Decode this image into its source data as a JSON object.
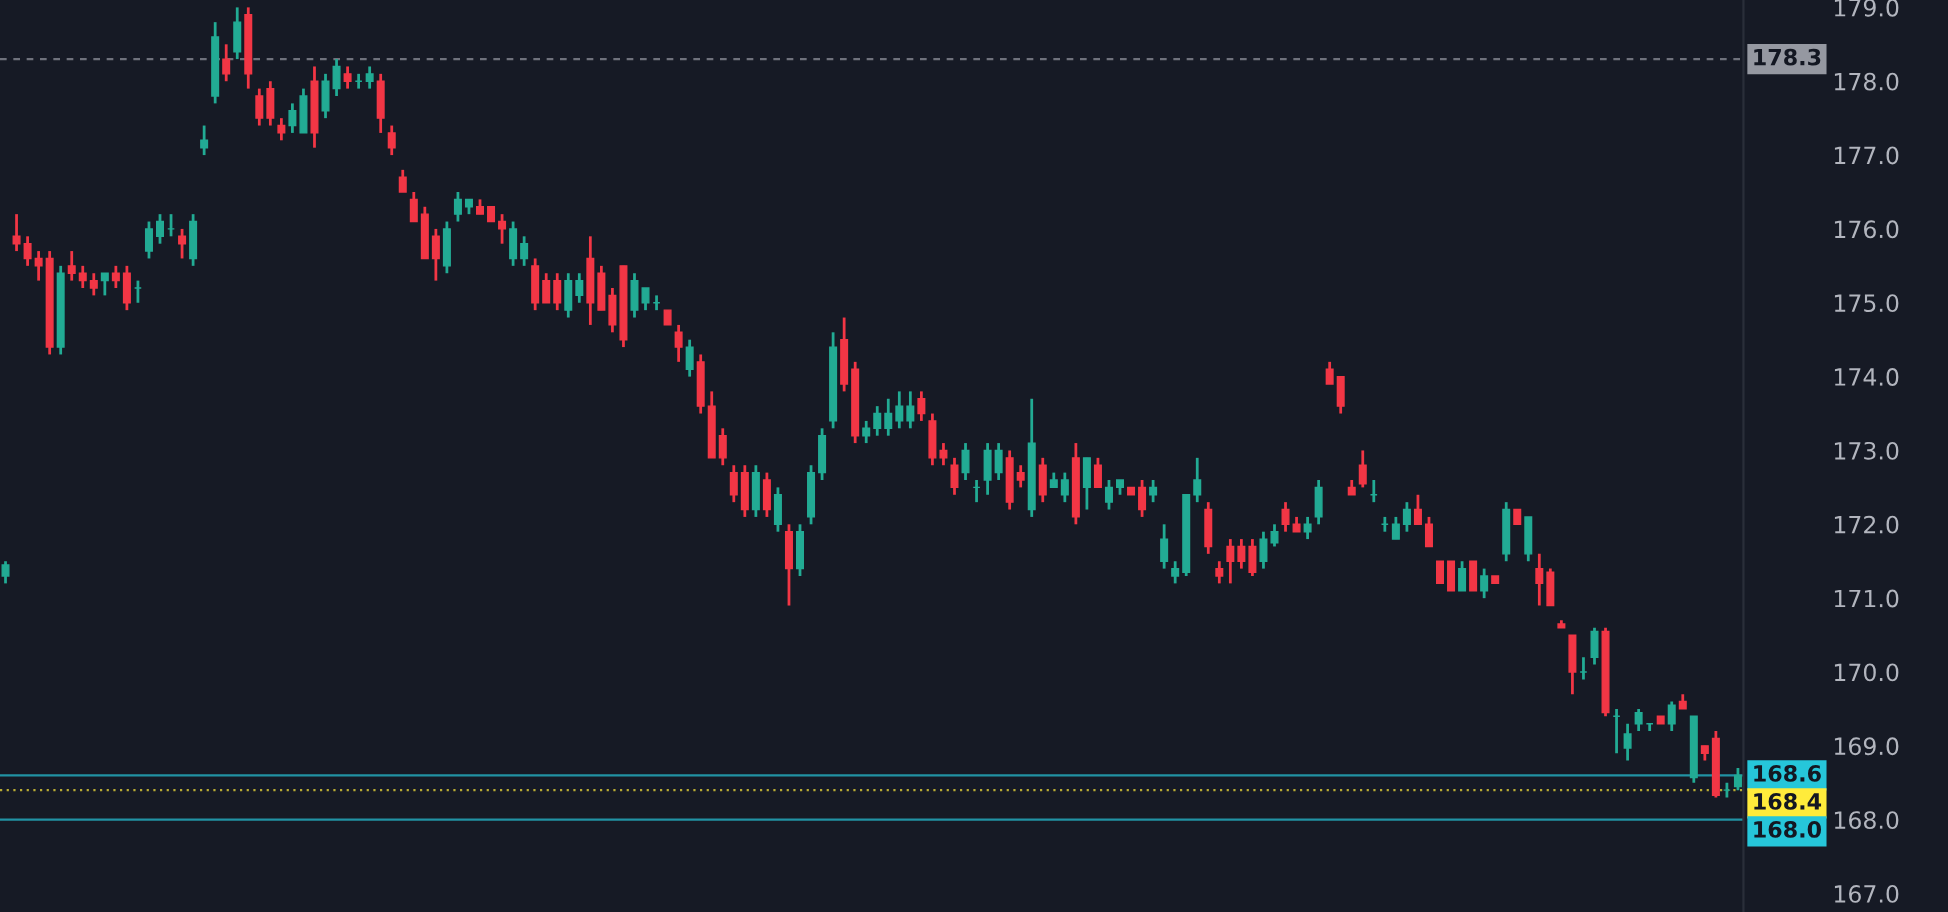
{
  "chart_data": {
    "type": "candlestick",
    "ylim": [
      166.75,
      179.1
    ],
    "yticks": [
      {
        "value": 167,
        "label": "167.0"
      },
      {
        "value": 168,
        "label": "168.0"
      },
      {
        "value": 169,
        "label": "169.0"
      },
      {
        "value": 170,
        "label": "170.0"
      },
      {
        "value": 171,
        "label": "171.0"
      },
      {
        "value": 172,
        "label": "172.0"
      },
      {
        "value": 173,
        "label": "173.0"
      },
      {
        "value": 174,
        "label": "174.0"
      },
      {
        "value": 175,
        "label": "175.0"
      },
      {
        "value": 176,
        "label": "176.0"
      },
      {
        "value": 177,
        "label": "177.0"
      },
      {
        "value": 178,
        "label": "178.0"
      },
      {
        "value": 179,
        "label": "179.0"
      }
    ],
    "tick_labels": "y",
    "categories": [
      null,
      null,
      null,
      null,
      null,
      null,
      null,
      null,
      null,
      null,
      null,
      null,
      null,
      null,
      null,
      null,
      null,
      null,
      null,
      null,
      null,
      null,
      null,
      null,
      null,
      null,
      null,
      null,
      null,
      null,
      null,
      null,
      null,
      null,
      null,
      null,
      null,
      null,
      null,
      null,
      null,
      null,
      null,
      null,
      null,
      null,
      null,
      null,
      null,
      null,
      null,
      null,
      null,
      null,
      null,
      null,
      null,
      null,
      null,
      null,
      null,
      null,
      null,
      null,
      null,
      null,
      null,
      null,
      null,
      null,
      null,
      null,
      null,
      null,
      null,
      null,
      null,
      null,
      null,
      null,
      null,
      null,
      null,
      null,
      null,
      null,
      null,
      null,
      null,
      null,
      null,
      null,
      null,
      null,
      null,
      null,
      null,
      null,
      null,
      null,
      null,
      null,
      null,
      null,
      null,
      null,
      null,
      null,
      null,
      null,
      null,
      null,
      null,
      null,
      null,
      null,
      null,
      null,
      null,
      null,
      null,
      null,
      null,
      null,
      null,
      null,
      null,
      null,
      null,
      null,
      null,
      null,
      null,
      null,
      null,
      null,
      null,
      null,
      null,
      null,
      null,
      null,
      null,
      null,
      null,
      null,
      null,
      null,
      null,
      null,
      null,
      null,
      null,
      null,
      null,
      null,
      null,
      null
    ],
    "grid": false,
    "ref_lines": [
      {
        "axis": "y",
        "value": 178.3,
        "label": "178.3",
        "color": "#9598a1",
        "line_style": "dashed"
      },
      {
        "axis": "y",
        "value": 168.6,
        "label": "168.6",
        "color": "#26c6da"
      },
      {
        "axis": "y",
        "value": 168.4,
        "label": "168.4",
        "color": "#ffeb3b",
        "line_style": "dotted"
      },
      {
        "axis": "y",
        "value": 168.0,
        "label": "168.0",
        "color": "#26c6da"
      }
    ],
    "ohlc": [
      [
        171.3,
        171.5,
        171.2,
        171.45
      ],
      [
        175.9,
        176.2,
        175.7,
        175.8
      ],
      [
        175.8,
        175.9,
        175.5,
        175.6
      ],
      [
        175.6,
        175.7,
        175.3,
        175.5
      ],
      [
        175.6,
        175.7,
        174.3,
        174.4
      ],
      [
        174.4,
        175.5,
        174.3,
        175.4
      ],
      [
        175.5,
        175.7,
        175.3,
        175.4
      ],
      [
        175.4,
        175.5,
        175.2,
        175.3
      ],
      [
        175.3,
        175.4,
        175.1,
        175.2
      ],
      [
        175.3,
        175.4,
        175.1,
        175.4
      ],
      [
        175.4,
        175.5,
        175.2,
        175.3
      ],
      [
        175.4,
        175.5,
        174.9,
        175.0
      ],
      [
        175.2,
        175.3,
        175.0,
        175.2
      ],
      [
        175.7,
        176.1,
        175.6,
        176.0
      ],
      [
        175.9,
        176.2,
        175.8,
        176.1
      ],
      [
        176.0,
        176.2,
        175.9,
        176.0
      ],
      [
        175.9,
        176.0,
        175.6,
        175.8
      ],
      [
        175.6,
        176.2,
        175.5,
        176.1
      ],
      [
        177.1,
        177.4,
        177.0,
        177.2
      ],
      [
        177.8,
        178.8,
        177.7,
        178.6
      ],
      [
        178.3,
        178.5,
        178.0,
        178.1
      ],
      [
        178.4,
        179.0,
        178.3,
        178.8
      ],
      [
        178.9,
        179.0,
        177.9,
        178.1
      ],
      [
        177.8,
        177.9,
        177.4,
        177.5
      ],
      [
        177.9,
        178.0,
        177.4,
        177.5
      ],
      [
        177.4,
        177.5,
        177.2,
        177.3
      ],
      [
        177.4,
        177.7,
        177.3,
        177.6
      ],
      [
        177.3,
        177.9,
        177.3,
        177.8
      ],
      [
        178.0,
        178.2,
        177.1,
        177.3
      ],
      [
        177.6,
        178.1,
        177.5,
        178.0
      ],
      [
        177.9,
        178.3,
        177.8,
        178.2
      ],
      [
        178.1,
        178.2,
        177.9,
        178.0
      ],
      [
        178.0,
        178.1,
        177.9,
        178.0
      ],
      [
        178.0,
        178.2,
        177.9,
        178.1
      ],
      [
        178.0,
        178.1,
        177.3,
        177.5
      ],
      [
        177.3,
        177.4,
        177.0,
        177.1
      ],
      [
        176.7,
        176.8,
        176.5,
        176.5
      ],
      [
        176.4,
        176.5,
        176.1,
        176.1
      ],
      [
        176.2,
        176.3,
        175.6,
        175.6
      ],
      [
        175.9,
        176.0,
        175.3,
        175.6
      ],
      [
        175.5,
        176.1,
        175.4,
        176.0
      ],
      [
        176.2,
        176.5,
        176.1,
        176.4
      ],
      [
        176.3,
        176.4,
        176.2,
        176.4
      ],
      [
        176.3,
        176.4,
        176.2,
        176.2
      ],
      [
        176.3,
        176.3,
        176.1,
        176.1
      ],
      [
        176.1,
        176.2,
        175.8,
        176.0
      ],
      [
        175.6,
        176.1,
        175.5,
        176.0
      ],
      [
        175.6,
        175.9,
        175.5,
        175.8
      ],
      [
        175.5,
        175.6,
        174.9,
        175.0
      ],
      [
        175.3,
        175.4,
        175.0,
        175.0
      ],
      [
        175.3,
        175.4,
        174.9,
        175.0
      ],
      [
        174.9,
        175.4,
        174.8,
        175.3
      ],
      [
        175.1,
        175.4,
        175.0,
        175.3
      ],
      [
        175.6,
        175.9,
        174.7,
        175.0
      ],
      [
        175.4,
        175.5,
        174.9,
        174.9
      ],
      [
        175.1,
        175.2,
        174.6,
        174.7
      ],
      [
        175.5,
        175.5,
        174.4,
        174.5
      ],
      [
        174.9,
        175.4,
        174.8,
        175.3
      ],
      [
        175.0,
        175.2,
        174.9,
        175.2
      ],
      [
        175.0,
        175.1,
        174.9,
        175.0
      ],
      [
        174.9,
        174.9,
        174.7,
        174.7
      ],
      [
        174.6,
        174.7,
        174.2,
        174.4
      ],
      [
        174.1,
        174.5,
        174.0,
        174.4
      ],
      [
        174.2,
        174.3,
        173.5,
        173.6
      ],
      [
        173.6,
        173.8,
        172.9,
        172.9
      ],
      [
        173.2,
        173.3,
        172.8,
        172.9
      ],
      [
        172.7,
        172.8,
        172.3,
        172.4
      ],
      [
        172.7,
        172.8,
        172.1,
        172.2
      ],
      [
        172.2,
        172.8,
        172.1,
        172.7
      ],
      [
        172.6,
        172.7,
        172.1,
        172.2
      ],
      [
        172.0,
        172.5,
        171.9,
        172.4
      ],
      [
        171.9,
        172.0,
        170.9,
        171.4
      ],
      [
        171.4,
        172.0,
        171.3,
        171.9
      ],
      [
        172.1,
        172.8,
        172.0,
        172.7
      ],
      [
        172.7,
        173.3,
        172.6,
        173.2
      ],
      [
        173.4,
        174.6,
        173.3,
        174.4
      ],
      [
        174.5,
        174.8,
        173.8,
        173.9
      ],
      [
        174.1,
        174.2,
        173.1,
        173.2
      ],
      [
        173.2,
        173.4,
        173.1,
        173.3
      ],
      [
        173.3,
        173.6,
        173.2,
        173.5
      ],
      [
        173.3,
        173.7,
        173.2,
        173.5
      ],
      [
        173.4,
        173.8,
        173.3,
        173.6
      ],
      [
        173.4,
        173.8,
        173.3,
        173.6
      ],
      [
        173.7,
        173.8,
        173.4,
        173.5
      ],
      [
        173.4,
        173.5,
        172.8,
        172.9
      ],
      [
        173.0,
        173.1,
        172.8,
        172.9
      ],
      [
        172.8,
        172.9,
        172.4,
        172.5
      ],
      [
        172.7,
        173.1,
        172.6,
        173.0
      ],
      [
        172.5,
        172.6,
        172.3,
        172.5
      ],
      [
        172.6,
        173.1,
        172.4,
        173.0
      ],
      [
        172.7,
        173.1,
        172.6,
        173.0
      ],
      [
        172.9,
        173.0,
        172.2,
        172.3
      ],
      [
        172.7,
        172.8,
        172.5,
        172.6
      ],
      [
        172.2,
        173.7,
        172.1,
        173.1
      ],
      [
        172.8,
        172.9,
        172.3,
        172.4
      ],
      [
        172.5,
        172.7,
        172.5,
        172.6
      ],
      [
        172.4,
        172.7,
        172.3,
        172.6
      ],
      [
        172.9,
        173.1,
        172.0,
        172.1
      ],
      [
        172.5,
        172.9,
        172.2,
        172.9
      ],
      [
        172.8,
        172.9,
        172.5,
        172.5
      ],
      [
        172.3,
        172.6,
        172.2,
        172.5
      ],
      [
        172.5,
        172.6,
        172.4,
        172.6
      ],
      [
        172.5,
        172.5,
        172.4,
        172.4
      ],
      [
        172.5,
        172.6,
        172.1,
        172.2
      ],
      [
        172.4,
        172.6,
        172.3,
        172.5
      ],
      [
        171.5,
        172.0,
        171.4,
        171.8
      ],
      [
        171.3,
        171.5,
        171.2,
        171.4
      ],
      [
        171.35,
        172.4,
        171.3,
        172.4
      ],
      [
        172.4,
        172.9,
        172.3,
        172.6
      ],
      [
        172.2,
        172.3,
        171.6,
        171.7
      ],
      [
        171.4,
        171.5,
        171.2,
        171.3
      ],
      [
        171.7,
        171.8,
        171.2,
        171.5
      ],
      [
        171.7,
        171.8,
        171.4,
        171.5
      ],
      [
        171.7,
        171.8,
        171.3,
        171.35
      ],
      [
        171.5,
        171.9,
        171.4,
        171.8
      ],
      [
        171.75,
        172.0,
        171.7,
        171.9
      ],
      [
        172.2,
        172.3,
        171.9,
        172.0
      ],
      [
        172.0,
        172.1,
        171.9,
        171.9
      ],
      [
        171.9,
        172.1,
        171.8,
        172.0
      ],
      [
        172.1,
        172.6,
        172.0,
        172.5
      ],
      [
        174.1,
        174.2,
        173.9,
        173.9
      ],
      [
        174.0,
        174.0,
        173.5,
        173.6
      ],
      [
        172.5,
        172.6,
        172.4,
        172.4
      ],
      [
        172.8,
        173.0,
        172.5,
        172.55
      ],
      [
        172.4,
        172.6,
        172.3,
        172.4
      ],
      [
        172.0,
        172.1,
        171.9,
        172.0
      ],
      [
        171.8,
        172.1,
        171.8,
        172.0
      ],
      [
        172.0,
        172.3,
        171.9,
        172.2
      ],
      [
        172.2,
        172.4,
        172.0,
        172.0
      ],
      [
        172.0,
        172.1,
        171.7,
        171.7
      ],
      [
        171.5,
        171.5,
        171.2,
        171.2
      ],
      [
        171.5,
        171.5,
        171.1,
        171.1
      ],
      [
        171.1,
        171.5,
        171.1,
        171.4
      ],
      [
        171.5,
        171.5,
        171.1,
        171.1
      ],
      [
        171.1,
        171.4,
        171.0,
        171.3
      ],
      [
        171.3,
        171.3,
        171.2,
        171.2
      ],
      [
        171.6,
        172.3,
        171.5,
        172.2
      ],
      [
        172.2,
        172.2,
        172.0,
        172.0
      ],
      [
        171.6,
        172.1,
        171.5,
        172.1
      ],
      [
        171.4,
        171.6,
        170.9,
        171.2
      ],
      [
        171.35,
        171.4,
        170.9,
        170.9
      ],
      [
        170.65,
        170.7,
        170.6,
        170.6
      ],
      [
        170.5,
        170.5,
        169.7,
        170.0
      ],
      [
        170.0,
        170.2,
        169.9,
        170.0
      ],
      [
        170.2,
        170.6,
        170.1,
        170.55
      ],
      [
        170.55,
        170.6,
        169.4,
        169.45
      ],
      [
        169.4,
        169.5,
        168.9,
        169.4
      ],
      [
        168.97,
        169.3,
        168.8,
        169.16
      ],
      [
        169.3,
        169.5,
        169.2,
        169.45
      ],
      [
        169.3,
        169.3,
        169.2,
        169.3
      ],
      [
        169.4,
        169.4,
        169.3,
        169.3
      ],
      [
        169.3,
        169.6,
        169.2,
        169.55
      ],
      [
        169.6,
        169.7,
        169.5,
        169.5
      ],
      [
        168.57,
        169.4,
        168.5,
        169.4
      ],
      [
        169.0,
        169.0,
        168.8,
        168.9
      ],
      [
        169.1,
        169.2,
        168.3,
        168.33
      ],
      [
        168.4,
        168.5,
        168.3,
        168.4
      ],
      [
        168.45,
        168.7,
        168.4,
        168.6
      ]
    ]
  }
}
